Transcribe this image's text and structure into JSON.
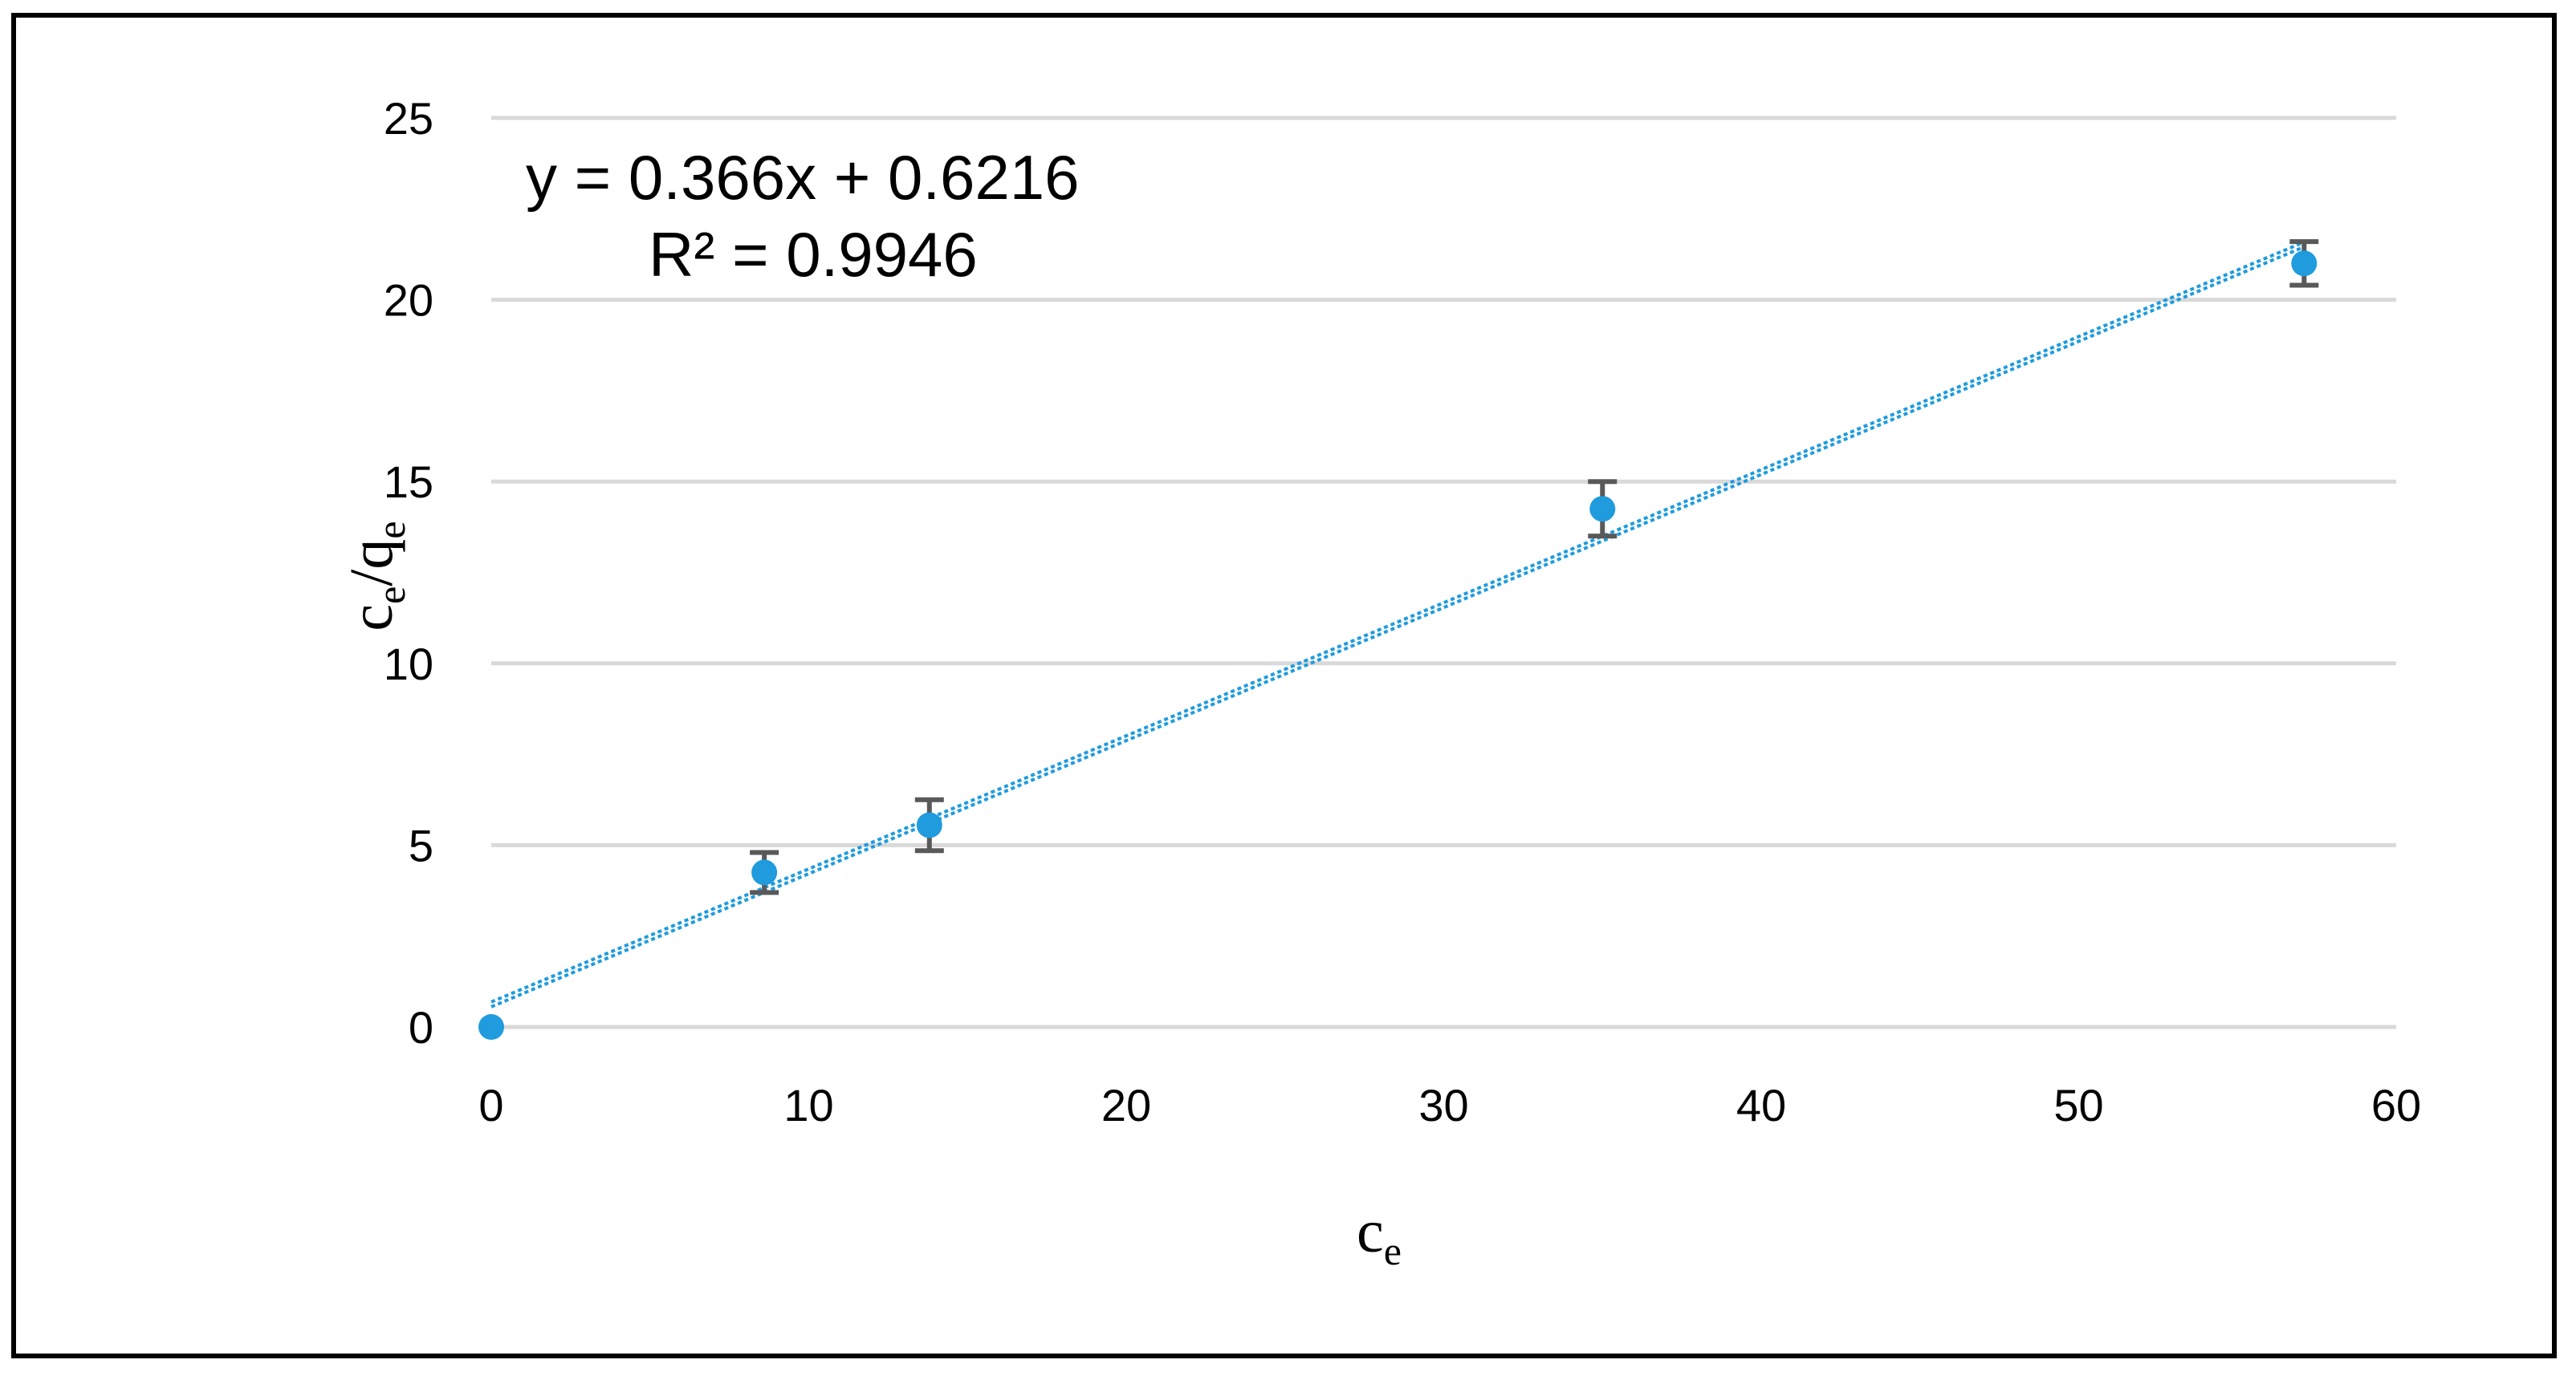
{
  "chart_data": {
    "type": "scatter",
    "title": "",
    "xlabel": {
      "base": "c",
      "sub": "e"
    },
    "ylabel": {
      "base1": "c",
      "sub1": "e",
      "sep": "/",
      "base2": "q",
      "sub2": "e"
    },
    "xlim": [
      0,
      60
    ],
    "ylim": [
      0,
      25
    ],
    "x_ticks": [
      0,
      10,
      20,
      30,
      40,
      50,
      60
    ],
    "y_ticks": [
      0,
      5,
      10,
      15,
      20,
      25
    ],
    "grid": "horizontal",
    "legend": "none",
    "series": [
      {
        "x": [
          0,
          8.6,
          13.8,
          35.0,
          57.1
        ],
        "y": [
          0,
          4.25,
          5.55,
          14.25,
          21.0
        ],
        "error": [
          0,
          0.55,
          0.7,
          0.75,
          0.6
        ]
      }
    ],
    "trendline": {
      "type": "linear",
      "slope": 0.366,
      "intercept": 0.6216,
      "equation": "y = 0.366x + 0.6216",
      "r_squared": "R² = 0.9946"
    },
    "colors": {
      "marker": "#1f9bde",
      "trendline": "#1f9bde",
      "error_bar": "#595959",
      "grid": "#d9d9d9"
    }
  }
}
